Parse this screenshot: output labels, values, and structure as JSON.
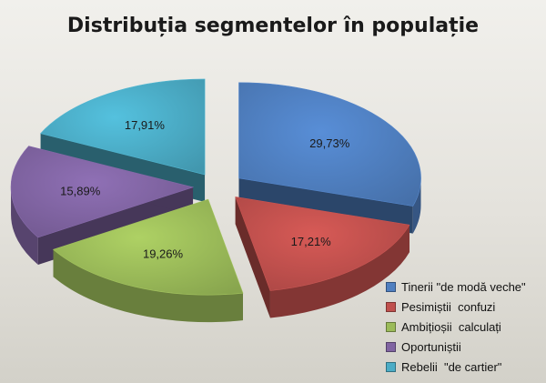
{
  "chart_data": {
    "type": "pie",
    "title": "Distribuția segmentelor în populație",
    "categories": [
      "Tinerii \"de modă veche\"",
      "Pesimiștii  confuzi",
      "Ambițioșii  calculați",
      "Oportuniștii",
      "Rebelii  \"de cartier\""
    ],
    "values": [
      29.73,
      17.21,
      19.26,
      15.89,
      17.91
    ],
    "labels": [
      "29,73%",
      "17,21%",
      "19,26%",
      "15,89%",
      "17,91%"
    ],
    "colors": [
      "#4f7fc0",
      "#c0504d",
      "#9bbb59",
      "#8064a2",
      "#4bacc6"
    ],
    "exploded": true,
    "style": "3d",
    "legend_position": "bottom-right"
  }
}
